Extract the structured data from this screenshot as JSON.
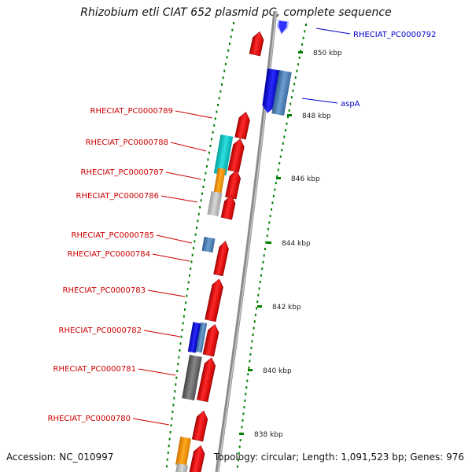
{
  "title": "Rhizobium etli CIAT 652 plasmid pC, complete sequence",
  "footer": {
    "accession": "Accession: NC_010997",
    "topology": "Topology: circular; Length: 1,091,523 bp; Genes: 976"
  },
  "colors": {
    "forward_strand": "#ff0000",
    "reverse_strand_blue": "#0000ff",
    "reverse_strand_steel": "#4f7fb8",
    "cyan_feature": "#00c8c8",
    "orange_feature": "#ff9900",
    "gray_feature": "#bbbbbb",
    "dark_gray_feature": "#666666",
    "backbone": "#999999",
    "tick_green": "#008000",
    "label_red": "#cc0000",
    "label_blue": "#0000cc"
  },
  "scale_ticks": [
    {
      "label": "850 kbp"
    },
    {
      "label": "848 kbp"
    },
    {
      "label": "846 kbp"
    },
    {
      "label": "844 kbp"
    },
    {
      "label": "842 kbp"
    },
    {
      "label": "840 kbp"
    },
    {
      "label": "838 kbp"
    }
  ],
  "gene_labels": [
    {
      "text": "RHECIAT_PC0000792",
      "color": "blue"
    },
    {
      "text": "aspA",
      "color": "blue"
    },
    {
      "text": "RHECIAT_PC0000789",
      "color": "red"
    },
    {
      "text": "RHECIAT_PC0000788",
      "color": "red"
    },
    {
      "text": "RHECIAT_PC0000787",
      "color": "red"
    },
    {
      "text": "RHECIAT_PC0000786",
      "color": "red"
    },
    {
      "text": "RHECIAT_PC0000785",
      "color": "red"
    },
    {
      "text": "RHECIAT_PC0000784",
      "color": "red"
    },
    {
      "text": "RHECIAT_PC0000783",
      "color": "red"
    },
    {
      "text": "RHECIAT_PC0000782",
      "color": "red"
    },
    {
      "text": "RHECIAT_PC0000781",
      "color": "red"
    },
    {
      "text": "RHECIAT_PC0000780",
      "color": "red"
    }
  ]
}
